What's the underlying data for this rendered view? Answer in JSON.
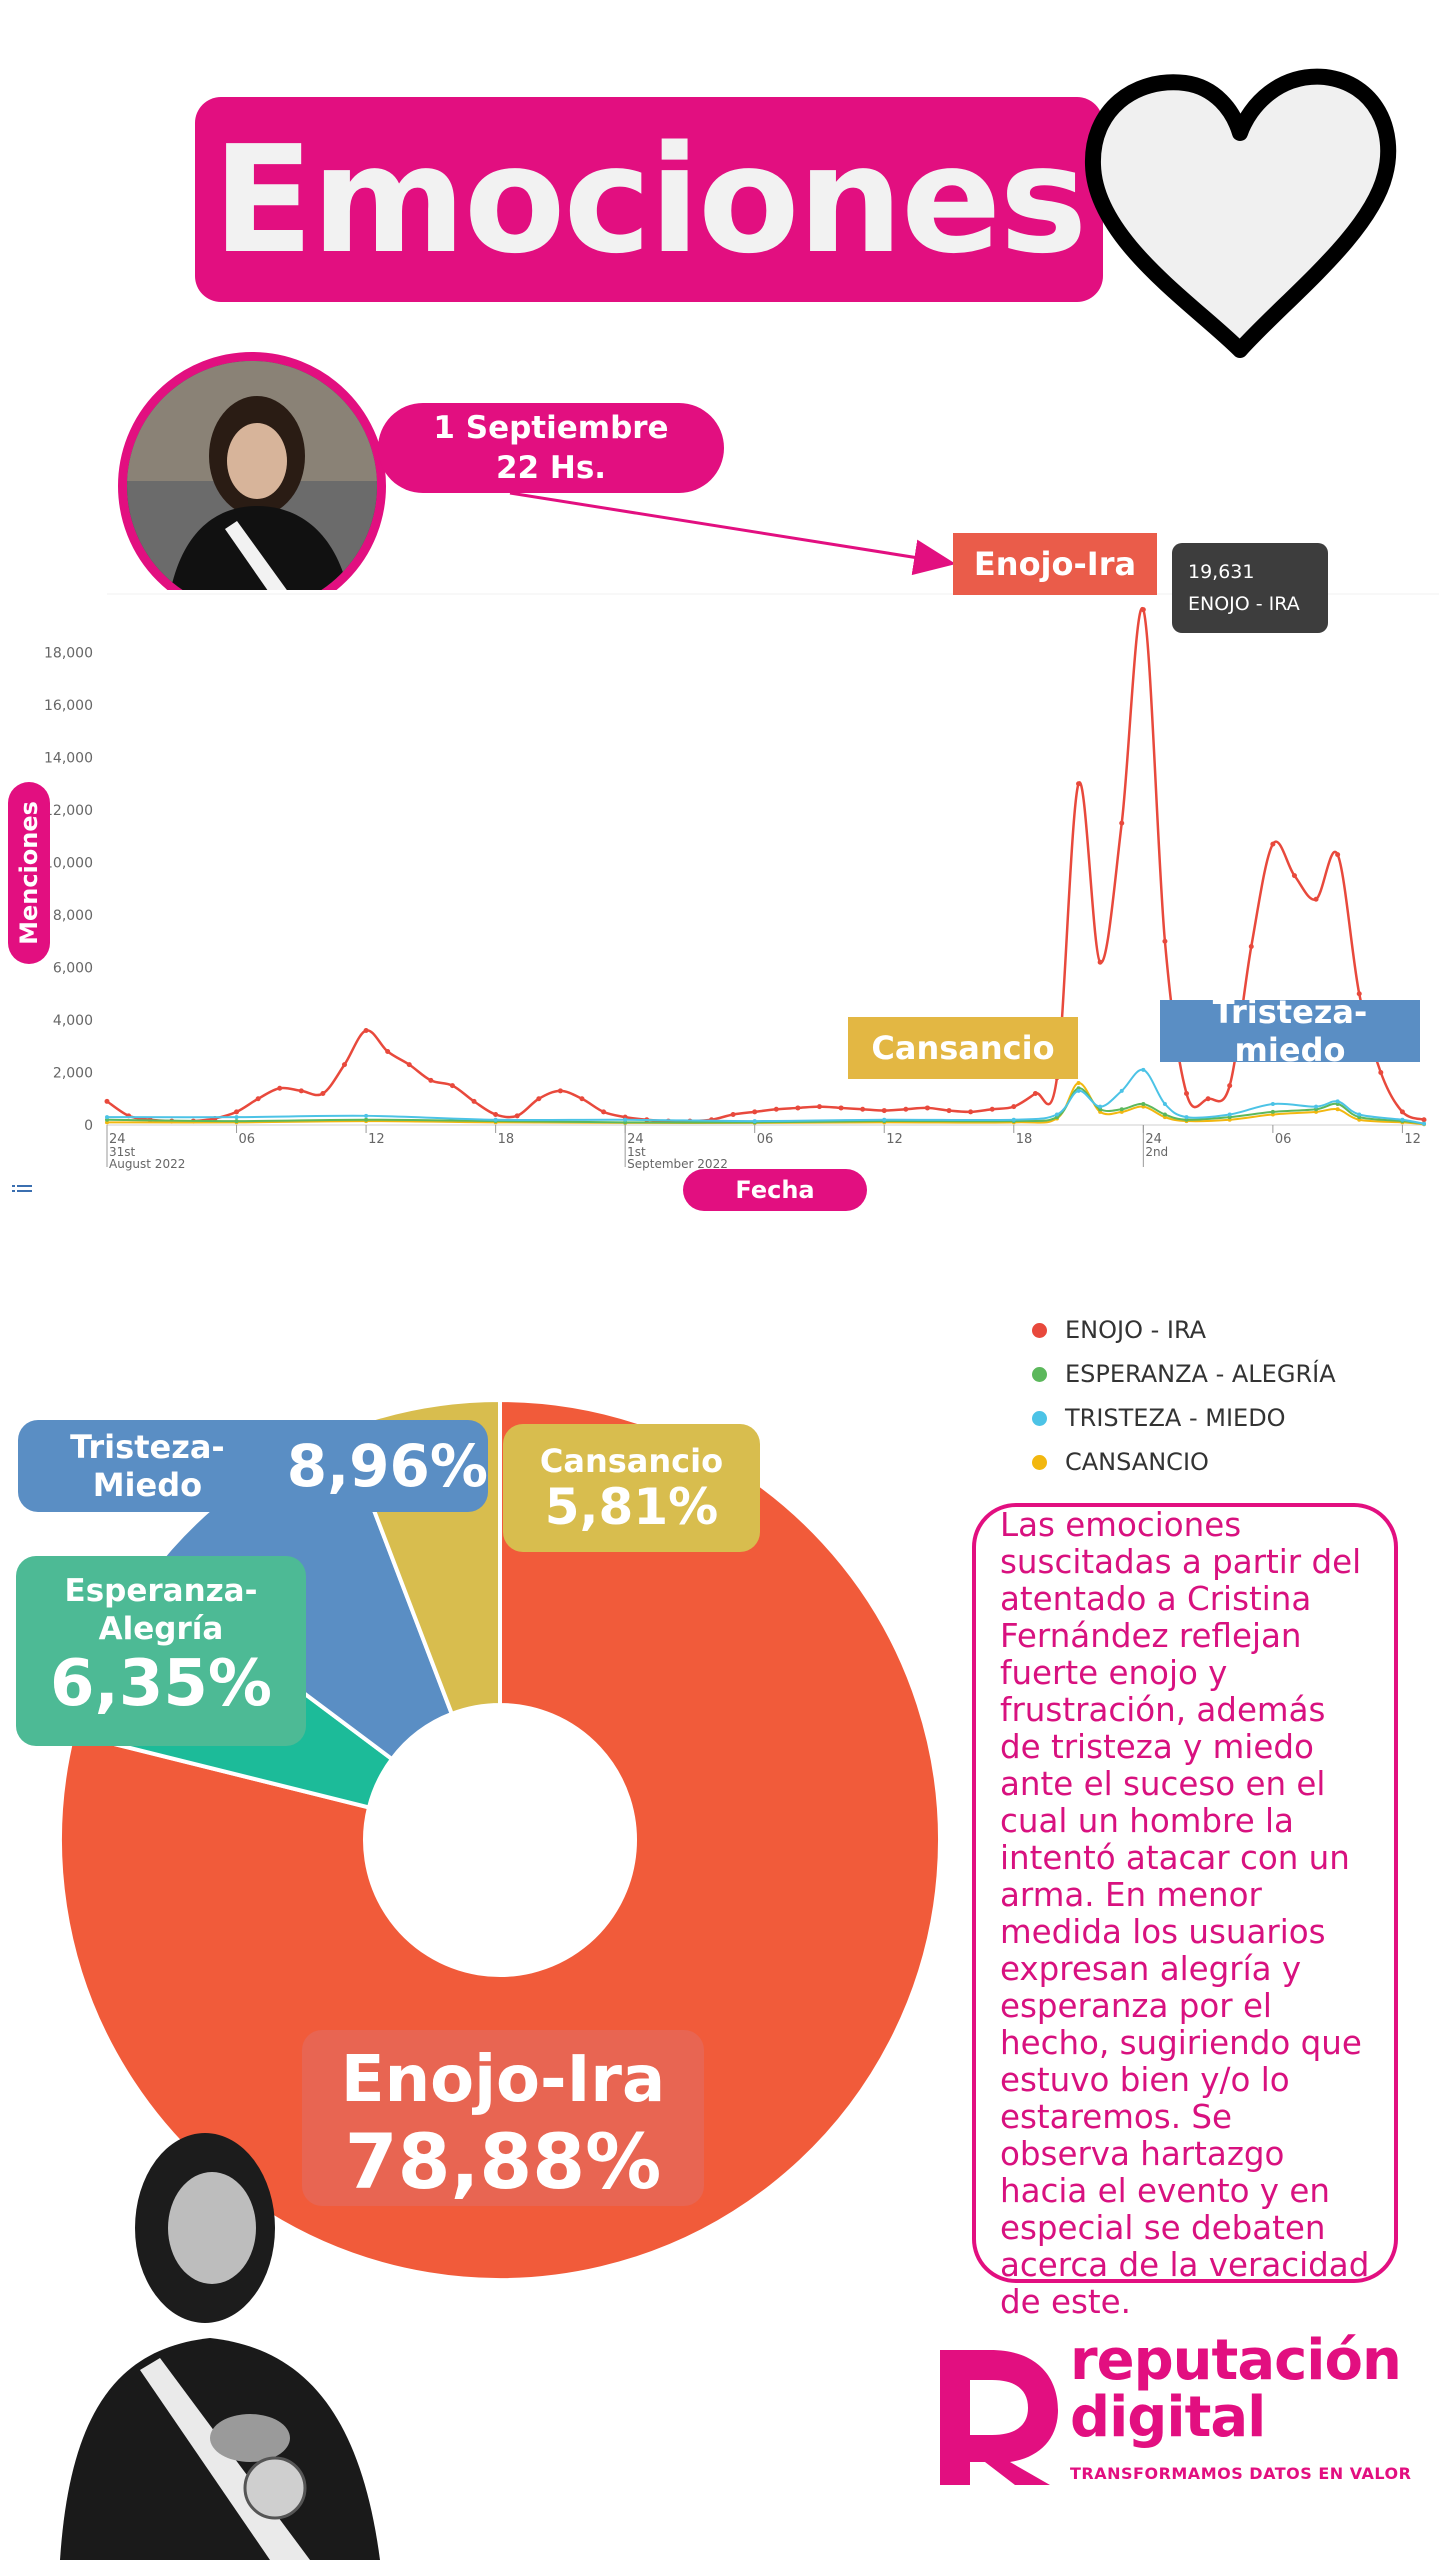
{
  "header": {
    "title": "Emociones",
    "date_line1": "1 Septiembre",
    "date_line2": "22 Hs."
  },
  "colors": {
    "brand": "#e20f80",
    "enojo": "#ea5c4a",
    "esperanza": "#4dba95",
    "tristeza": "#5a8ec4",
    "cansancio": "#d8bd4e"
  },
  "annotations": {
    "enojo_label": "Enojo-Ira",
    "cansancio_label": "Cansancio",
    "tristeza_label": "Tristeza-miedo",
    "tooltip_value": "19,631",
    "tooltip_series": "ENOJO - IRA"
  },
  "legend": {
    "items": [
      {
        "label": "ENOJO - IRA",
        "color": "#e8493c"
      },
      {
        "label": "ESPERANZA - ALEGRÍA",
        "color": "#5cb85c"
      },
      {
        "label": "TRISTEZA - MIEDO",
        "color": "#4cc3e6"
      },
      {
        "label": "CANSANCIO",
        "color": "#f2b70f"
      }
    ]
  },
  "pie_labels": {
    "tristeza": {
      "label": "Tristeza-Miedo",
      "value": "8,96%"
    },
    "cansancio": {
      "label": "Cansancio",
      "value": "5,81%"
    },
    "esperanza": {
      "label": "Esperanza-Alegría",
      "value": "6,35%"
    },
    "enojo": {
      "label": "Enojo-Ira",
      "value": "78,88%"
    }
  },
  "description": "Las emociones suscitadas a partir del atentado a Cristina Fernández reflejan fuerte enojo y frustración, además de tristeza y miedo ante el suceso en el cual un hombre la intentó atacar con un arma. En menor medida los usuarios expresan alegría y esperanza por el hecho, sugiriendo que estuvo bien y/o lo estaremos. Se observa hartazgo hacia el evento y en especial se debaten acerca de la veracidad de este.",
  "logo": {
    "line1": "reputación",
    "line2": "digital",
    "tagline": "TRANSFORMAMOS DATOS EN VALOR"
  },
  "chart_data": [
    {
      "type": "line",
      "title": "",
      "xlabel": "Fecha",
      "ylabel": "Menciones",
      "ylim": [
        0,
        20000
      ],
      "yticks": [
        0,
        2000,
        4000,
        6000,
        8000,
        10000,
        12000,
        14000,
        16000,
        18000
      ],
      "ytick_labels": [
        "0",
        "2,000",
        "4,000",
        "6,000",
        "8,000",
        "10,000",
        "12,000",
        "14,000",
        "16,000",
        "18,000"
      ],
      "x_tick_labels": [
        "24",
        "06",
        "12",
        "18",
        "24",
        "06",
        "12",
        "18",
        "24",
        "06",
        "12"
      ],
      "x_tick_sublabels": [
        [
          "31st",
          "August 2022"
        ],
        [],
        [],
        [],
        [
          "1st",
          "September 2022"
        ],
        [],
        [],
        [],
        [
          "2nd"
        ],
        [],
        []
      ],
      "x_hours": [
        0,
        6,
        12,
        18,
        24,
        30,
        36,
        42,
        48,
        54,
        60
      ],
      "series": [
        {
          "name": "ENOJO - IRA",
          "color": "#e8493c",
          "x": [
            0,
            1,
            2,
            3,
            4,
            5,
            6,
            7,
            8,
            9,
            10,
            11,
            12,
            13,
            14,
            15,
            16,
            17,
            18,
            19,
            20,
            21,
            22,
            23,
            24,
            25,
            26,
            27,
            28,
            29,
            30,
            31,
            32,
            33,
            34,
            35,
            36,
            37,
            38,
            39,
            40,
            41,
            42,
            43,
            44,
            45,
            46,
            47,
            48,
            49,
            50,
            51,
            52,
            53,
            54,
            55,
            56,
            57,
            58,
            59,
            60,
            61
          ],
          "y": [
            900,
            350,
            200,
            150,
            150,
            250,
            500,
            1000,
            1400,
            1300,
            1200,
            2300,
            3600,
            2800,
            2300,
            1700,
            1500,
            900,
            400,
            350,
            1000,
            1300,
            1000,
            500,
            300,
            200,
            150,
            150,
            200,
            400,
            500,
            600,
            650,
            700,
            650,
            600,
            550,
            600,
            650,
            550,
            500,
            600,
            700,
            1200,
            1800,
            13000,
            6200,
            11500,
            19631,
            7000,
            1200,
            1000,
            1500,
            6800,
            10700,
            9500,
            8600,
            10300,
            5000,
            2000,
            500,
            200
          ]
        },
        {
          "name": "ESPERANZA - ALEGRÍA",
          "color": "#5cb85c",
          "x": [
            0,
            6,
            12,
            18,
            24,
            30,
            36,
            42,
            44,
            45,
            46,
            47,
            48,
            49,
            50,
            52,
            54,
            56,
            57,
            58,
            60,
            61
          ],
          "y": [
            200,
            150,
            200,
            150,
            100,
            100,
            150,
            150,
            300,
            1400,
            600,
            600,
            800,
            400,
            200,
            300,
            500,
            600,
            800,
            300,
            150,
            50
          ]
        },
        {
          "name": "TRISTEZA - MIEDO",
          "color": "#4cc3e6",
          "x": [
            0,
            6,
            12,
            18,
            24,
            30,
            36,
            42,
            44,
            45,
            46,
            47,
            48,
            49,
            50,
            52,
            54,
            56,
            57,
            58,
            60,
            61
          ],
          "y": [
            300,
            300,
            350,
            200,
            200,
            150,
            200,
            200,
            400,
            1300,
            700,
            1300,
            2100,
            800,
            300,
            400,
            800,
            700,
            900,
            400,
            200,
            50
          ]
        },
        {
          "name": "CANSANCIO",
          "color": "#f2b70f",
          "x": [
            0,
            6,
            12,
            18,
            24,
            30,
            36,
            42,
            44,
            45,
            46,
            47,
            48,
            49,
            50,
            52,
            54,
            56,
            57,
            58,
            60,
            61
          ],
          "y": [
            100,
            100,
            150,
            100,
            80,
            80,
            100,
            100,
            250,
            1600,
            500,
            500,
            700,
            300,
            150,
            200,
            400,
            500,
            600,
            200,
            100,
            30
          ]
        }
      ]
    },
    {
      "type": "pie",
      "title": "",
      "categories": [
        "Enojo-Ira",
        "Esperanza-Alegría",
        "Tristeza-Miedo",
        "Cansancio"
      ],
      "values": [
        78.88,
        6.35,
        8.96,
        5.81
      ],
      "colors": [
        "#f15b3a",
        "#1cbb99",
        "#5a8ec4",
        "#d8bd4e"
      ]
    }
  ]
}
